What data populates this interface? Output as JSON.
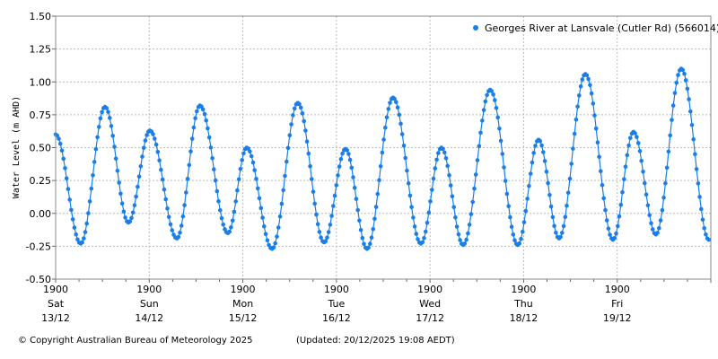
{
  "chart_data": {
    "type": "line",
    "ylabel": "Water Level (m AHD)",
    "ylim": [
      -0.5,
      1.5
    ],
    "yticks": [
      "1.50",
      "1.25",
      "1.00",
      "0.75",
      "0.50",
      "0.25",
      "0.00",
      "-0.25",
      "-0.50"
    ],
    "xlim": [
      "13/12/2025 19:00",
      "20/12/2025 19:00"
    ],
    "xticks": [
      {
        "time": "1900",
        "day": "Sat",
        "date": "13/12"
      },
      {
        "time": "1900",
        "day": "Sun",
        "date": "14/12"
      },
      {
        "time": "1900",
        "day": "Mon",
        "date": "15/12"
      },
      {
        "time": "1900",
        "day": "Tue",
        "date": "16/12"
      },
      {
        "time": "1900",
        "day": "Wed",
        "date": "17/12"
      },
      {
        "time": "1900",
        "day": "Thu",
        "date": "18/12"
      },
      {
        "time": "1900",
        "day": "Fri",
        "date": "19/12"
      }
    ],
    "grid": true,
    "legend_position": "top-right",
    "series": [
      {
        "name": "Georges River at Lansvale (Cutler Rd) (566014)",
        "color": "#1a7ee8",
        "points": [
          [
            "13/12 19:00",
            0.6
          ],
          [
            "14/12 01:25",
            -0.23
          ],
          [
            "14/12 07:40",
            0.81
          ],
          [
            "14/12 13:40",
            -0.07
          ],
          [
            "14/12 19:10",
            0.63
          ],
          [
            "15/12 02:05",
            -0.19
          ],
          [
            "15/12 08:00",
            0.82
          ],
          [
            "15/12 15:10",
            -0.15
          ],
          [
            "15/12 20:00",
            0.5
          ],
          [
            "16/12 02:30",
            -0.27
          ],
          [
            "16/12 09:05",
            0.84
          ],
          [
            "16/12 15:50",
            -0.22
          ],
          [
            "16/12 21:20",
            0.49
          ],
          [
            "17/12 02:50",
            -0.27
          ],
          [
            "17/12 09:30",
            0.88
          ],
          [
            "17/12 16:40",
            -0.23
          ],
          [
            "17/12 21:55",
            0.5
          ],
          [
            "18/12 03:30",
            -0.24
          ],
          [
            "18/12 10:25",
            0.94
          ],
          [
            "18/12 17:30",
            -0.24
          ],
          [
            "18/12 22:50",
            0.56
          ],
          [
            "19/12 04:05",
            -0.19
          ],
          [
            "19/12 10:50",
            1.06
          ],
          [
            "19/12 17:55",
            -0.2
          ],
          [
            "19/12 23:10",
            0.62
          ],
          [
            "20/12 04:55",
            -0.16
          ],
          [
            "20/12 11:25",
            1.1
          ],
          [
            "20/12 18:30",
            -0.2
          ]
        ]
      }
    ]
  },
  "footer": {
    "copyright": "© Copyright Australian Bureau of Meteorology 2025",
    "updated": "(Updated: 20/12/2025 19:08 AEDT)"
  }
}
